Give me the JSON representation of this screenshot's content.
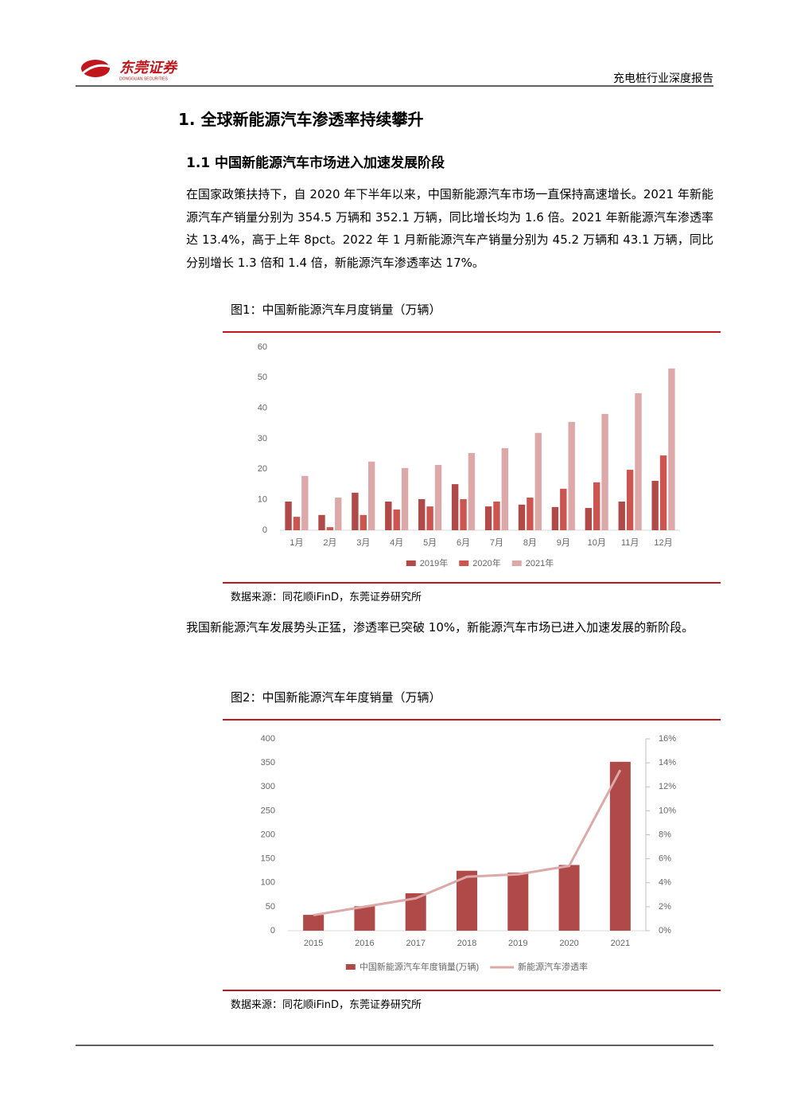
{
  "header": {
    "logo": "东莞证券",
    "logo_sub": "DONGGUAN SECURITIES",
    "report": "充电桩行业深度报告"
  },
  "section": {
    "title": "1. 全球新能源汽车渗透率持续攀升"
  },
  "subsection": {
    "title": "1.1 中国新能源汽车市场进入加速发展阶段"
  },
  "paragraphs": [
    "在国家政策扶持下，自 2020 年下半年以来，中国新能源汽车市场一直保持高速增长。2021 年新能源汽车产销量分别为 354.5 万辆和 352.1 万辆，同比增长均为 1.6 倍。2021 年新能源汽车渗透率达 13.4%，高于上年 8pct。2022 年 1 月新能源汽车产销量分别为 45.2 万辆和 43.1 万辆，同比分别增长 1.3 倍和 1.4 倍，新能源汽车渗透率达 17%。",
    "我国新能源汽车发展势头正猛，渗透率已突破 10%，新能源汽车市场已进入加速发展的新阶段。"
  ],
  "figures": [
    {
      "title": "图1：中国新能源汽车月度销量（万辆）",
      "source": "数据来源：同花顺iFinD，东莞证券研究所"
    },
    {
      "title": "图2：中国新能源汽车年度销量（万辆）",
      "source": "数据来源：同花顺iFinD，东莞证券研究所"
    }
  ],
  "chart_data": [
    {
      "type": "bar",
      "categories": [
        "1月",
        "2月",
        "3月",
        "4月",
        "5月",
        "6月",
        "7月",
        "8月",
        "9月",
        "10月",
        "11月",
        "12月"
      ],
      "series": [
        {
          "name": "2019年",
          "color": "#b04a48",
          "values": [
            9.4,
            5.0,
            12.3,
            9.4,
            10.2,
            15.1,
            7.8,
            8.4,
            7.6,
            7.3,
            9.4,
            16.2
          ]
        },
        {
          "name": "2020年",
          "color": "#cc5550",
          "values": [
            4.4,
            1.0,
            5.0,
            6.8,
            7.8,
            10.2,
            9.4,
            10.7,
            13.6,
            15.7,
            19.8,
            24.5
          ]
        },
        {
          "name": "2021年",
          "color": "#dca8a8",
          "values": [
            17.8,
            10.7,
            22.5,
            20.4,
            21.4,
            25.3,
            26.9,
            31.9,
            35.5,
            38.1,
            44.9,
            53.0
          ]
        }
      ],
      "ylim": [
        0,
        60
      ],
      "yticks": [
        0,
        10,
        20,
        30,
        40,
        50,
        60
      ],
      "legend": "bottom"
    },
    {
      "type": "combo",
      "categories": [
        "2015",
        "2016",
        "2017",
        "2018",
        "2019",
        "2020",
        "2021"
      ],
      "series": [
        {
          "name": "中国新能源汽车年度销量(万辆)",
          "type": "bar",
          "color": "#b04a48",
          "values": [
            33,
            51,
            78,
            125,
            121,
            137,
            352.1
          ]
        },
        {
          "name": "新能源汽车渗透率",
          "type": "line",
          "axis": "y2",
          "color": "#dca8a8",
          "values": [
            1.3,
            2.0,
            2.7,
            4.5,
            4.7,
            5.4,
            13.4
          ]
        }
      ],
      "ylim": [
        0,
        400
      ],
      "yticks": [
        0,
        50,
        100,
        150,
        200,
        250,
        300,
        350,
        400
      ],
      "y2lim": [
        0,
        16
      ],
      "y2ticks": [
        {
          "value": 0,
          "label": "0%"
        },
        {
          "value": 2,
          "label": "2%"
        },
        {
          "value": 4,
          "label": "4%"
        },
        {
          "value": 6,
          "label": "6%"
        },
        {
          "value": 8,
          "label": "8%"
        },
        {
          "value": 10,
          "label": "10%"
        },
        {
          "value": 12,
          "label": "12%"
        },
        {
          "value": 14,
          "label": "14%"
        },
        {
          "value": 16,
          "label": "16%"
        }
      ],
      "legend": "bottom"
    }
  ]
}
